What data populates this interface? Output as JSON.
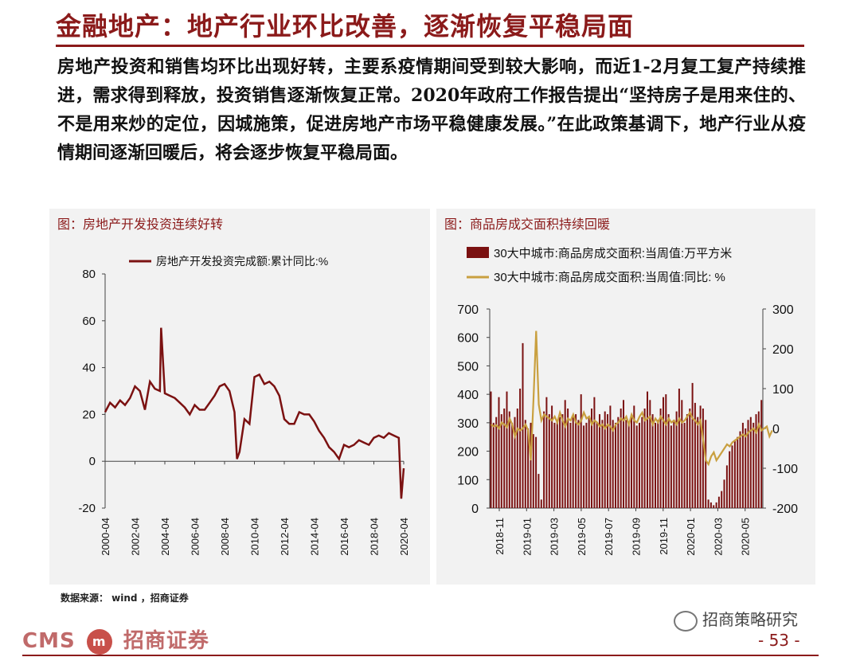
{
  "title": "金融地产：地产行业环比改善，逐渐恢复平稳局面",
  "paragraph": "房地产投资和销售均环比出现好转，主要系疫情期间受到较大影响，而近1-2月复工复产持续推进，需求得到释放，投资销售逐渐恢复正常。2020年政府工作报告提出“坚持房子是用来住的、不是用来炒的定位，因城施策，促进房地产市场平稳健康发展。”在此政策基调下，地产行业从疫情期间逐渐回暖后，将会逐步恢复平稳局面。",
  "left_panel_title": "图：房地产开发投资连续好转",
  "right_panel_title": "图：商品房成交面积持续回暖",
  "source": "数据来源： wind ，招商证券",
  "footer": {
    "brand": "CMS",
    "brand_mark": "m",
    "brand_cn": "招商证券",
    "wechat": "招商策略研究",
    "page": "- 53 -"
  },
  "colors": {
    "accent": "#8b1a1a",
    "line_left": "#7b1111",
    "bar": "#7b1111",
    "line_right": "#c9a040",
    "panel_bg": "#f2f2f2"
  },
  "chart_data": [
    {
      "type": "line",
      "series": [
        {
          "name": "房地产开发投资完成额:累计同比:%",
          "x": [
            "2000-04",
            "2000-08",
            "2000-12",
            "2001-04",
            "2001-08",
            "2001-12",
            "2002-04",
            "2002-08",
            "2002-12",
            "2003-04",
            "2003-08",
            "2003-12",
            "2004-01",
            "2004-04",
            "2004-08",
            "2004-12",
            "2005-04",
            "2005-08",
            "2005-12",
            "2006-04",
            "2006-08",
            "2006-12",
            "2007-04",
            "2007-08",
            "2007-12",
            "2008-04",
            "2008-08",
            "2008-12",
            "2009-02",
            "2009-04",
            "2009-08",
            "2009-12",
            "2010-04",
            "2010-08",
            "2010-12",
            "2011-04",
            "2011-08",
            "2011-12",
            "2012-04",
            "2012-08",
            "2012-12",
            "2013-04",
            "2013-08",
            "2013-12",
            "2014-04",
            "2014-08",
            "2014-12",
            "2015-04",
            "2015-08",
            "2015-12",
            "2016-04",
            "2016-08",
            "2016-12",
            "2017-04",
            "2017-08",
            "2017-12",
            "2018-04",
            "2018-08",
            "2018-12",
            "2019-04",
            "2019-08",
            "2019-12",
            "2020-02",
            "2020-04"
          ],
          "y": [
            21,
            25,
            23,
            26,
            24,
            27,
            32,
            30,
            22,
            34,
            31,
            30,
            57,
            29,
            28,
            27,
            25,
            23,
            20,
            24,
            22,
            22,
            25,
            28,
            32,
            33,
            30,
            21,
            1,
            4,
            18,
            16,
            36,
            37,
            33,
            34,
            32,
            28,
            18,
            16,
            16,
            21,
            20,
            20,
            17,
            13,
            10,
            6,
            4,
            1,
            7,
            6,
            7,
            9,
            8,
            7,
            10,
            11,
            10,
            12,
            11,
            10,
            -16,
            -3
          ]
        }
      ],
      "x_ticks": [
        "2000-04",
        "2002-04",
        "2004-04",
        "2006-04",
        "2008-04",
        "2010-04",
        "2012-04",
        "2014-04",
        "2016-04",
        "2018-04",
        "2020-04"
      ],
      "ylim": [
        -20,
        80
      ],
      "y_ticks": [
        -20,
        0,
        20,
        40,
        60,
        80
      ],
      "legend": "top-center"
    },
    {
      "type": "bar",
      "x_ticks": [
        "2018-11",
        "2019-01",
        "2019-03",
        "2019-05",
        "2019-07",
        "2019-09",
        "2019-11",
        "2020-01",
        "2020-03",
        "2020-05"
      ],
      "series": [
        {
          "name": "30大中城市:商品房成交面积:当周值:万平方米",
          "axis": "left",
          "type": "bar",
          "values": [
            410,
            300,
            320,
            390,
            330,
            350,
            410,
            340,
            300,
            320,
            350,
            420,
            580,
            310,
            280,
            300,
            260,
            250,
            120,
            30,
            340,
            390,
            330,
            360,
            300,
            310,
            320,
            330,
            380,
            350,
            300,
            320,
            330,
            310,
            400,
            290,
            300,
            320,
            350,
            390,
            300,
            330,
            310,
            340,
            330,
            360,
            310,
            300,
            320,
            350,
            380,
            310,
            300,
            330,
            360,
            290,
            300,
            320,
            350,
            410,
            380,
            330,
            300,
            310,
            350,
            390,
            400,
            330,
            290,
            310,
            340,
            420,
            380,
            300,
            330,
            350,
            440,
            370,
            320,
            360,
            350,
            310,
            30,
            20,
            10,
            20,
            40,
            60,
            100,
            150,
            200,
            220,
            240,
            250,
            270,
            300,
            280,
            310,
            320,
            300,
            330,
            340,
            380
          ]
        },
        {
          "name": "30大中城市:商品房成交面积:当周值:同比:  %",
          "axis": "right",
          "type": "line",
          "values": [
            10,
            5,
            8,
            0,
            15,
            10,
            3,
            25,
            10,
            -20,
            0,
            -5,
            0,
            10,
            -5,
            -80,
            70,
            245,
            60,
            20,
            35,
            30,
            25,
            20,
            30,
            15,
            40,
            20,
            5,
            25,
            20,
            35,
            15,
            10,
            20,
            40,
            25,
            30,
            10,
            20,
            15,
            5,
            10,
            0,
            10,
            5,
            -5,
            10,
            15,
            25,
            20,
            30,
            10,
            35,
            20,
            15,
            30,
            40,
            20,
            25,
            30,
            10,
            25,
            15,
            30,
            20,
            10,
            25,
            15,
            20,
            10,
            25,
            15,
            20,
            30,
            40,
            25,
            20,
            10,
            20,
            -30,
            -80,
            -90,
            -70,
            -60,
            -80,
            -70,
            -60,
            -50,
            -40,
            -45,
            -35,
            -30,
            -25,
            -20,
            -15,
            -20,
            -10,
            -5,
            0,
            -10,
            10,
            -5,
            0,
            5,
            -20,
            -5
          ]
        }
      ],
      "ylim_left": [
        0,
        700
      ],
      "y_ticks_left": [
        0,
        100,
        200,
        300,
        400,
        500,
        600,
        700
      ],
      "ylim_right": [
        -200,
        300
      ],
      "y_ticks_right": [
        -200,
        -100,
        0,
        100,
        200,
        300
      ],
      "legend": "top"
    }
  ]
}
